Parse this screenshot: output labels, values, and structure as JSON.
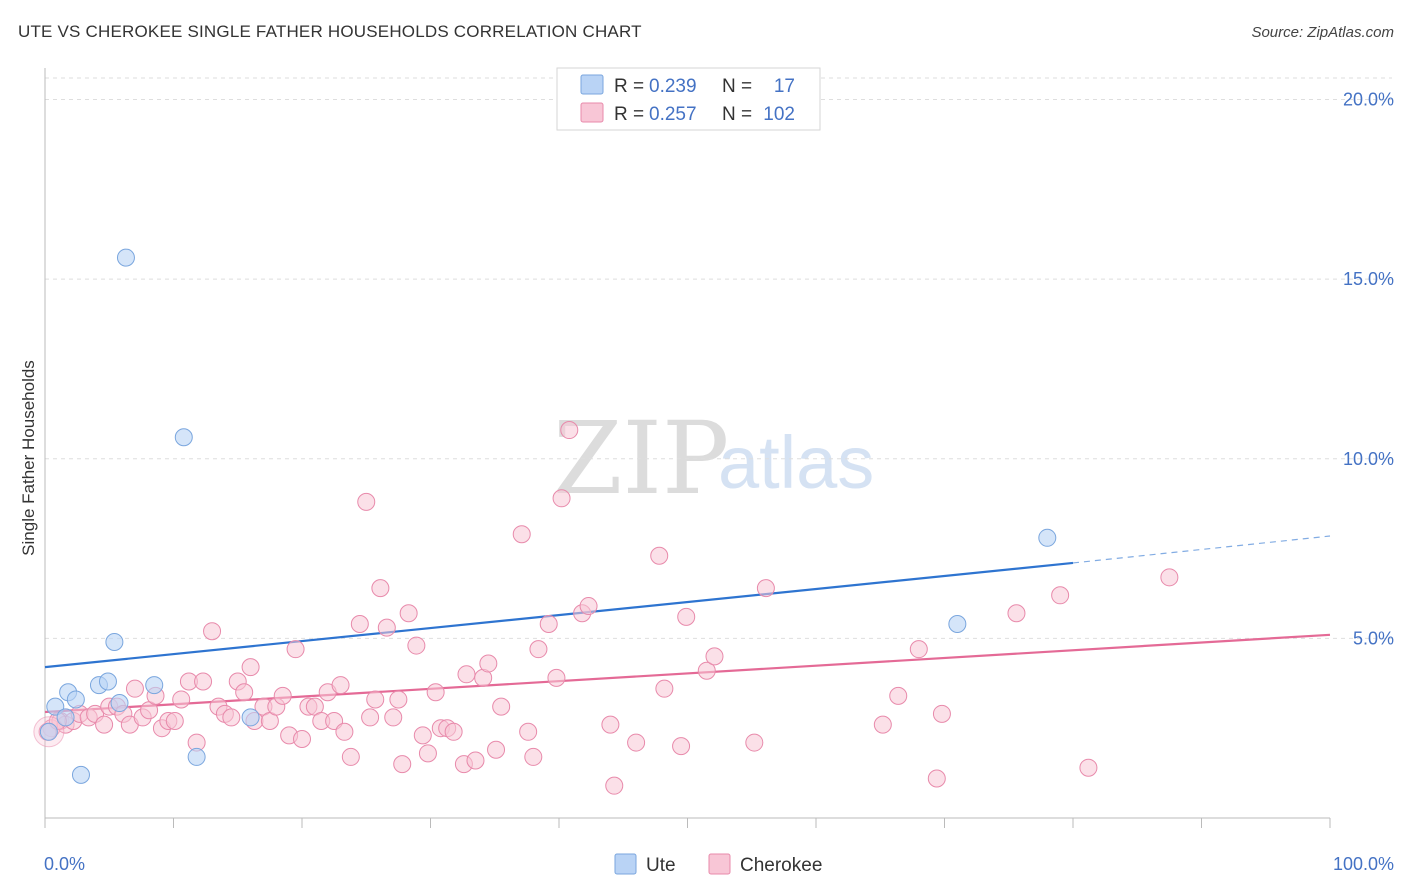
{
  "header": {
    "title": "UTE VS CHEROKEE SINGLE FATHER HOUSEHOLDS CORRELATION CHART",
    "source": "Source: ZipAtlas.com"
  },
  "watermark": {
    "zip": "ZIP",
    "atlas": "atlas"
  },
  "colors": {
    "ute_fill": "#b9d3f5",
    "ute_stroke": "#7aa6de",
    "ute_line": "#2e74d0",
    "cherokee_fill": "#f8c6d6",
    "cherokee_stroke": "#e88aab",
    "cherokee_line": "#e46a96",
    "grid": "#dedede",
    "axis": "#bbbbbb",
    "tick_label": "#4472c4"
  },
  "legend_top": {
    "ute": {
      "r_label": "R = ",
      "r_value": "0.239",
      "n_label": "N = ",
      "n_value": "17"
    },
    "cherokee": {
      "r_label": "R = ",
      "r_value": "0.257",
      "n_label": "N = ",
      "n_value": "102"
    }
  },
  "chart_data": {
    "type": "scatter",
    "title": "UTE VS CHEROKEE SINGLE FATHER HOUSEHOLDS CORRELATION CHART",
    "xlabel": "",
    "ylabel": "Single Father Households",
    "xlim": [
      0,
      100
    ],
    "ylim": [
      0,
      20.6
    ],
    "x_tick_labels": {
      "min": "0.0%",
      "max": "100.0%"
    },
    "y_ticks": [
      5,
      10,
      15,
      20
    ],
    "y_tick_labels": [
      "5.0%",
      "10.0%",
      "15.0%",
      "20.0%"
    ],
    "legend_position": "bottom-center",
    "series": [
      {
        "name": "Ute",
        "r": 0.239,
        "n": 17,
        "trend": {
          "x0": 0,
          "y0": 4.2,
          "x1": 80,
          "y1": 7.1,
          "dashed_to_x": 100,
          "dashed_to_y": 7.85
        },
        "points": [
          [
            0.3,
            2.4
          ],
          [
            0.8,
            3.1
          ],
          [
            1.6,
            2.8
          ],
          [
            1.8,
            3.5
          ],
          [
            2.4,
            3.3
          ],
          [
            2.8,
            1.2
          ],
          [
            4.2,
            3.7
          ],
          [
            4.9,
            3.8
          ],
          [
            5.4,
            4.9
          ],
          [
            5.8,
            3.2
          ],
          [
            6.3,
            15.6
          ],
          [
            8.5,
            3.7
          ],
          [
            10.8,
            10.6
          ],
          [
            11.8,
            1.7
          ],
          [
            16.0,
            2.8
          ],
          [
            71.0,
            5.4
          ],
          [
            78.0,
            7.8
          ]
        ]
      },
      {
        "name": "Cherokee",
        "r": 0.257,
        "n": 102,
        "trend": {
          "x0": 0,
          "y0": 2.95,
          "x1": 100,
          "y1": 5.1
        },
        "points": [
          [
            0.5,
            2.5
          ],
          [
            1.2,
            2.7
          ],
          [
            1.6,
            2.6
          ],
          [
            2.2,
            2.7
          ],
          [
            2.7,
            2.9
          ],
          [
            3.4,
            2.8
          ],
          [
            3.9,
            2.9
          ],
          [
            4.6,
            2.6
          ],
          [
            5.0,
            3.1
          ],
          [
            5.6,
            3.1
          ],
          [
            6.1,
            2.9
          ],
          [
            6.6,
            2.6
          ],
          [
            7.0,
            3.6
          ],
          [
            7.6,
            2.8
          ],
          [
            8.1,
            3.0
          ],
          [
            8.6,
            3.4
          ],
          [
            9.1,
            2.5
          ],
          [
            9.6,
            2.7
          ],
          [
            10.1,
            2.7
          ],
          [
            10.6,
            3.3
          ],
          [
            11.2,
            3.8
          ],
          [
            11.8,
            2.1
          ],
          [
            12.3,
            3.8
          ],
          [
            13.0,
            5.2
          ],
          [
            13.5,
            3.1
          ],
          [
            14.0,
            2.9
          ],
          [
            14.5,
            2.8
          ],
          [
            15.0,
            3.8
          ],
          [
            15.5,
            3.5
          ],
          [
            16.0,
            4.2
          ],
          [
            16.3,
            2.7
          ],
          [
            17.0,
            3.1
          ],
          [
            17.5,
            2.7
          ],
          [
            18.0,
            3.1
          ],
          [
            18.5,
            3.4
          ],
          [
            19.0,
            2.3
          ],
          [
            19.5,
            4.7
          ],
          [
            20.0,
            2.2
          ],
          [
            20.5,
            3.1
          ],
          [
            21.0,
            3.1
          ],
          [
            21.5,
            2.7
          ],
          [
            22.0,
            3.5
          ],
          [
            22.5,
            2.7
          ],
          [
            23.0,
            3.7
          ],
          [
            23.3,
            2.4
          ],
          [
            23.8,
            1.7
          ],
          [
            24.5,
            5.4
          ],
          [
            25.0,
            8.8
          ],
          [
            25.3,
            2.8
          ],
          [
            25.7,
            3.3
          ],
          [
            26.1,
            6.4
          ],
          [
            26.6,
            5.3
          ],
          [
            27.1,
            2.8
          ],
          [
            27.5,
            3.3
          ],
          [
            27.8,
            1.5
          ],
          [
            28.3,
            5.7
          ],
          [
            28.9,
            4.8
          ],
          [
            29.4,
            2.3
          ],
          [
            29.8,
            1.8
          ],
          [
            30.4,
            3.5
          ],
          [
            30.8,
            2.5
          ],
          [
            31.3,
            2.5
          ],
          [
            31.8,
            2.4
          ],
          [
            32.6,
            1.5
          ],
          [
            32.8,
            4.0
          ],
          [
            33.5,
            1.6
          ],
          [
            34.1,
            3.9
          ],
          [
            34.5,
            4.3
          ],
          [
            35.1,
            1.9
          ],
          [
            35.5,
            3.1
          ],
          [
            37.1,
            7.9
          ],
          [
            37.6,
            2.4
          ],
          [
            38.0,
            1.7
          ],
          [
            38.4,
            4.7
          ],
          [
            39.2,
            5.4
          ],
          [
            39.8,
            3.9
          ],
          [
            40.2,
            8.9
          ],
          [
            40.8,
            10.8
          ],
          [
            41.8,
            5.7
          ],
          [
            42.3,
            5.9
          ],
          [
            44.0,
            2.6
          ],
          [
            44.3,
            0.9
          ],
          [
            46.0,
            2.1
          ],
          [
            47.8,
            7.3
          ],
          [
            48.2,
            3.6
          ],
          [
            49.5,
            2.0
          ],
          [
            49.9,
            5.6
          ],
          [
            51.5,
            4.1
          ],
          [
            52.1,
            4.5
          ],
          [
            55.2,
            2.1
          ],
          [
            56.1,
            6.4
          ],
          [
            65.2,
            2.6
          ],
          [
            66.4,
            3.4
          ],
          [
            68.0,
            4.7
          ],
          [
            69.4,
            1.1
          ],
          [
            69.8,
            2.9
          ],
          [
            75.6,
            5.7
          ],
          [
            79.0,
            6.2
          ],
          [
            81.2,
            1.4
          ],
          [
            87.5,
            6.7
          ],
          [
            0.2,
            2.4
          ],
          [
            1.0,
            2.7
          ]
        ]
      }
    ]
  },
  "legend_bottom": {
    "ute_label": "Ute",
    "cherokee_label": "Cherokee"
  }
}
